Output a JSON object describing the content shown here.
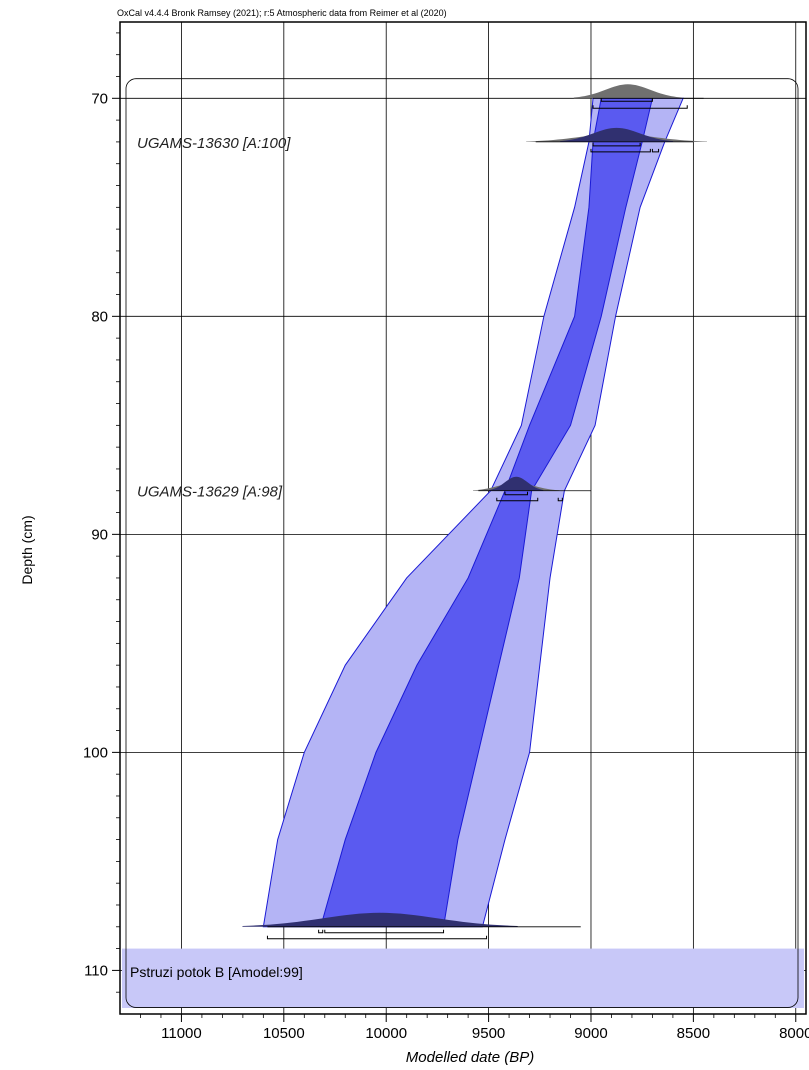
{
  "header": {
    "credit": "OxCal v4.4.4 Bronk Ramsey (2021); r:5 Atmospheric data from Reimer et al (2020)"
  },
  "axes": {
    "xlabel": "Modelled date (BP)",
    "ylabel": "Depth (cm)"
  },
  "colors": {
    "outer_band": "#b4b4f5",
    "inner_band": "#5a5af0",
    "band_stroke": "#1a1ad6",
    "distribution": "#707070",
    "distribution_dark": "#303070",
    "sequence_band": "#c8c8f8"
  },
  "chart_data": {
    "type": "area",
    "title": "",
    "xlabel": "Modelled date (BP)",
    "ylabel": "Depth (cm)",
    "xlim": [
      11300,
      7950
    ],
    "ylim": [
      66.5,
      112
    ],
    "x_reversed": true,
    "y_reversed": true,
    "grid": true,
    "x_ticks": [
      11000,
      10500,
      10000,
      9500,
      9000,
      8500,
      8000
    ],
    "y_ticks": [
      70,
      80,
      90,
      100,
      110
    ],
    "series": [
      {
        "name": "",
        "role": "95.4% range",
        "points": [
          {
            "depth": 70,
            "old": 8990,
            "young": 8550
          },
          {
            "depth": 72,
            "old": 9010,
            "young": 8640
          },
          {
            "depth": 75,
            "old": 9080,
            "young": 8760
          },
          {
            "depth": 80,
            "old": 9230,
            "young": 8880
          },
          {
            "depth": 85,
            "old": 9340,
            "young": 8980
          },
          {
            "depth": 88,
            "old": 9490,
            "young": 9130
          },
          {
            "depth": 92,
            "old": 9900,
            "young": 9200
          },
          {
            "depth": 96,
            "old": 10200,
            "young": 9250
          },
          {
            "depth": 100,
            "old": 10400,
            "young": 9300
          },
          {
            "depth": 104,
            "old": 10530,
            "young": 9420
          },
          {
            "depth": 108,
            "old": 10600,
            "young": 9530
          }
        ]
      },
      {
        "name": "",
        "role": "68.3% range",
        "points": [
          {
            "depth": 70,
            "old": 8950,
            "young": 8700
          },
          {
            "depth": 72,
            "old": 8990,
            "young": 8750
          },
          {
            "depth": 75,
            "old": 9010,
            "young": 8830
          },
          {
            "depth": 80,
            "old": 9080,
            "young": 8950
          },
          {
            "depth": 85,
            "old": 9300,
            "young": 9100
          },
          {
            "depth": 88,
            "old": 9420,
            "young": 9290
          },
          {
            "depth": 92,
            "old": 9600,
            "young": 9350
          },
          {
            "depth": 96,
            "old": 9850,
            "young": 9450
          },
          {
            "depth": 100,
            "old": 10050,
            "young": 9550
          },
          {
            "depth": 104,
            "old": 10200,
            "young": 9650
          },
          {
            "depth": 108,
            "old": 10320,
            "young": 9720
          }
        ]
      }
    ],
    "samples": [
      {
        "label": "UGAMS-13630 [A:100]",
        "depth": 72,
        "unmodelled_span": [
          9270,
          8500
        ],
        "range_68": [
          8990,
          8760
        ],
        "range_95": [
          [
            9000,
            8710
          ],
          [
            8700,
            8670
          ]
        ]
      },
      {
        "label": "UGAMS-13629 [A:98]",
        "depth": 88,
        "unmodelled_span": [
          9550,
          9000
        ],
        "range_68": [
          9420,
          9310
        ],
        "range_95": [
          [
            9460,
            9260
          ],
          [
            9160,
            9140
          ]
        ]
      }
    ],
    "boundary_top": {
      "depth": 70,
      "range_68": [
        8950,
        8700
      ],
      "range_95": [
        8990,
        8530
      ]
    },
    "boundary_bottom": {
      "depth": 108,
      "range_68": [
        [
          10330,
          10310
        ],
        [
          10300,
          9720
        ]
      ],
      "range_95": [
        10580,
        9510
      ]
    },
    "sequence": {
      "label": "Pstruzi potok B [Amodel:99]",
      "depth_range": [
        109,
        112
      ]
    }
  }
}
